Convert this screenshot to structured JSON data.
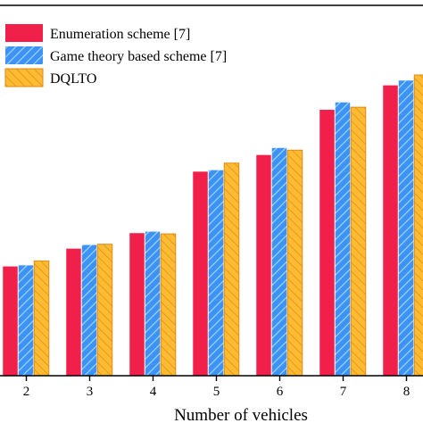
{
  "chart_data": {
    "type": "bar",
    "xlabel": "Number of vehicles",
    "ylabel": "",
    "categories": [
      "2",
      "3",
      "4",
      "5",
      "6",
      "7",
      "8"
    ],
    "ylim": [
      0,
      1
    ],
    "y_ticks_visible": false,
    "grid": false,
    "legend_position": "top-left",
    "series": [
      {
        "name": "Enumeration scheme [7]",
        "values": [
          0.295,
          0.343,
          0.385,
          0.551,
          0.596,
          0.718,
          0.784
        ]
      },
      {
        "name": "Game theory based scheme [7]",
        "values": [
          0.298,
          0.353,
          0.389,
          0.555,
          0.615,
          0.738,
          0.797
        ]
      },
      {
        "name": "DQLTO",
        "values": [
          0.31,
          0.355,
          0.383,
          0.574,
          0.609,
          0.725,
          0.812
        ]
      }
    ],
    "colors": {
      "series_fills": [
        "#f0204a",
        "#3c93f5",
        "#fdbb33"
      ],
      "series_hatch": [
        "none",
        "#9fd4fb",
        "#e08a14"
      ],
      "axis": "#000000"
    }
  }
}
